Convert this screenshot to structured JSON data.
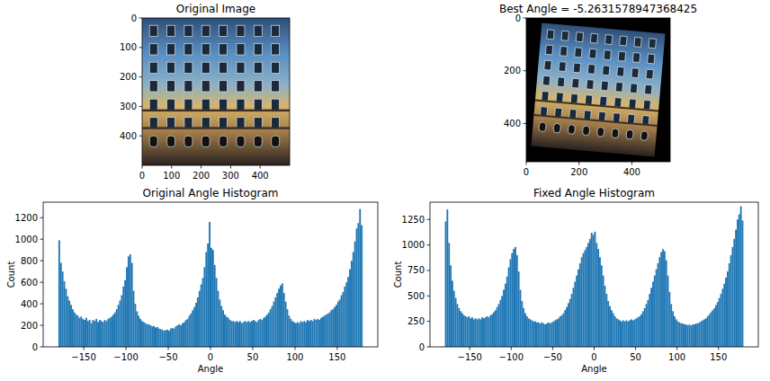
{
  "chart_data": [
    {
      "type": "image",
      "title": "Original Image",
      "xlim": [
        0,
        500
      ],
      "ylim": [
        500,
        0
      ],
      "xticks": [
        0,
        100,
        200,
        300,
        400
      ],
      "yticks": [
        0,
        100,
        200,
        300,
        400
      ]
    },
    {
      "type": "image",
      "title": "Best Angle = -5.2631578947368425",
      "xlim": [
        0,
        545
      ],
      "ylim": [
        545,
        0
      ],
      "xticks": [
        0,
        200,
        400
      ],
      "yticks": [
        0,
        200,
        400
      ]
    },
    {
      "type": "histogram",
      "title": "Original Angle Histogram",
      "x_label": "Angle",
      "y_label": "Count",
      "color": "#1f77b4",
      "bins": [
        -180,
        -178,
        -176,
        -174,
        -172,
        -170,
        -168,
        -166,
        -164,
        -162,
        -160,
        -158,
        -156,
        -154,
        -152,
        -150,
        -148,
        -146,
        -144,
        -142,
        -140,
        -138,
        -136,
        -134,
        -132,
        -130,
        -128,
        -126,
        -124,
        -122,
        -120,
        -118,
        -116,
        -114,
        -112,
        -110,
        -108,
        -106,
        -104,
        -102,
        -100,
        -98,
        -96,
        -94,
        -92,
        -90,
        -88,
        -86,
        -84,
        -82,
        -80,
        -78,
        -76,
        -74,
        -72,
        -70,
        -68,
        -66,
        -64,
        -62,
        -60,
        -58,
        -56,
        -54,
        -52,
        -50,
        -48,
        -46,
        -44,
        -42,
        -40,
        -38,
        -36,
        -34,
        -32,
        -30,
        -28,
        -26,
        -24,
        -22,
        -20,
        -18,
        -16,
        -14,
        -12,
        -10,
        -8,
        -6,
        -4,
        -2,
        0,
        2,
        4,
        6,
        8,
        10,
        12,
        14,
        16,
        18,
        20,
        22,
        24,
        26,
        28,
        30,
        32,
        34,
        36,
        38,
        40,
        42,
        44,
        46,
        48,
        50,
        52,
        54,
        56,
        58,
        60,
        62,
        64,
        66,
        68,
        70,
        72,
        74,
        76,
        78,
        80,
        82,
        84,
        86,
        88,
        90,
        92,
        94,
        96,
        98,
        100,
        102,
        104,
        106,
        108,
        110,
        112,
        114,
        116,
        118,
        120,
        122,
        124,
        126,
        128,
        130,
        132,
        134,
        136,
        138,
        140,
        142,
        144,
        146,
        148,
        150,
        152,
        154,
        156,
        158,
        160,
        162,
        164,
        166,
        168,
        170,
        172,
        174,
        176,
        178,
        180
      ],
      "counts": [
        990,
        780,
        700,
        610,
        540,
        470,
        430,
        390,
        350,
        320,
        300,
        290,
        270,
        280,
        260,
        250,
        270,
        240,
        250,
        220,
        250,
        240,
        260,
        230,
        250,
        240,
        230,
        250,
        240,
        260,
        270,
        280,
        300,
        320,
        350,
        390,
        430,
        480,
        560,
        620,
        740,
        840,
        860,
        780,
        520,
        400,
        330,
        290,
        260,
        240,
        230,
        220,
        210,
        210,
        200,
        190,
        195,
        180,
        185,
        170,
        165,
        160,
        150,
        155,
        160,
        150,
        170,
        175,
        170,
        190,
        200,
        210,
        200,
        220,
        230,
        250,
        260,
        290,
        310,
        340,
        370,
        410,
        460,
        520,
        580,
        640,
        740,
        880,
        960,
        1160,
        920,
        900,
        760,
        640,
        520,
        440,
        380,
        340,
        300,
        280,
        270,
        250,
        240,
        240,
        230,
        240,
        230,
        240,
        220,
        230,
        240,
        230,
        240,
        230,
        240,
        250,
        240,
        230,
        250,
        260,
        250,
        270,
        280,
        300,
        320,
        350,
        380,
        420,
        460,
        500,
        540,
        570,
        590,
        500,
        420,
        350,
        290,
        260,
        240,
        230,
        220,
        230,
        220,
        240,
        230,
        240,
        230,
        250,
        240,
        250,
        240,
        260,
        250,
        260,
        250,
        270,
        280,
        290,
        300,
        310,
        320,
        340,
        350,
        370,
        390,
        420,
        440,
        480,
        510,
        560,
        600,
        650,
        720,
        800,
        880,
        980,
        1100,
        1150,
        1280,
        1130
      ],
      "xlim": [
        -198,
        198
      ],
      "ylim": [
        0,
        1344
      ],
      "xticks": [
        {
          "value": -150,
          "label": "−150"
        },
        {
          "value": -100,
          "label": "−100"
        },
        {
          "value": -50,
          "label": "−50"
        },
        0,
        50,
        100,
        150
      ],
      "yticks": [
        0,
        200,
        400,
        600,
        800,
        1000,
        1200
      ]
    },
    {
      "type": "histogram",
      "title": "Fixed Angle Histogram",
      "x_label": "Angle",
      "y_label": "Count",
      "color": "#1f77b4",
      "bins": [
        -180,
        -178,
        -176,
        -174,
        -172,
        -170,
        -168,
        -166,
        -164,
        -162,
        -160,
        -158,
        -156,
        -154,
        -152,
        -150,
        -148,
        -146,
        -144,
        -142,
        -140,
        -138,
        -136,
        -134,
        -132,
        -130,
        -128,
        -126,
        -124,
        -122,
        -120,
        -118,
        -116,
        -114,
        -112,
        -110,
        -108,
        -106,
        -104,
        -102,
        -100,
        -98,
        -96,
        -94,
        -92,
        -90,
        -88,
        -86,
        -84,
        -82,
        -80,
        -78,
        -76,
        -74,
        -72,
        -70,
        -68,
        -66,
        -64,
        -62,
        -60,
        -58,
        -56,
        -54,
        -52,
        -50,
        -48,
        -46,
        -44,
        -42,
        -40,
        -38,
        -36,
        -34,
        -32,
        -30,
        -28,
        -26,
        -24,
        -22,
        -20,
        -18,
        -16,
        -14,
        -12,
        -10,
        -8,
        -6,
        -4,
        -2,
        0,
        2,
        4,
        6,
        8,
        10,
        12,
        14,
        16,
        18,
        20,
        22,
        24,
        26,
        28,
        30,
        32,
        34,
        36,
        38,
        40,
        42,
        44,
        46,
        48,
        50,
        52,
        54,
        56,
        58,
        60,
        62,
        64,
        66,
        68,
        70,
        72,
        74,
        76,
        78,
        80,
        82,
        84,
        86,
        88,
        90,
        92,
        94,
        96,
        98,
        100,
        102,
        104,
        106,
        108,
        110,
        112,
        114,
        116,
        118,
        120,
        122,
        124,
        126,
        128,
        130,
        132,
        134,
        136,
        138,
        140,
        142,
        144,
        146,
        148,
        150,
        152,
        154,
        156,
        158,
        160,
        162,
        164,
        166,
        168,
        170,
        172,
        174,
        176,
        178,
        180
      ],
      "counts": [
        1230,
        1350,
        1020,
        800,
        650,
        550,
        480,
        420,
        380,
        350,
        330,
        310,
        300,
        290,
        300,
        280,
        290,
        270,
        280,
        270,
        280,
        270,
        290,
        280,
        290,
        300,
        290,
        310,
        320,
        340,
        360,
        390,
        420,
        460,
        500,
        560,
        620,
        690,
        780,
        860,
        920,
        960,
        980,
        900,
        740,
        560,
        450,
        380,
        330,
        300,
        280,
        270,
        260,
        250,
        250,
        240,
        240,
        230,
        240,
        230,
        220,
        230,
        240,
        230,
        240,
        250,
        260,
        270,
        280,
        300,
        310,
        330,
        360,
        390,
        430,
        470,
        520,
        580,
        640,
        700,
        760,
        820,
        880,
        920,
        950,
        980,
        1020,
        1060,
        1120,
        1100,
        1130,
        1020,
        960,
        880,
        800,
        700,
        600,
        520,
        450,
        400,
        360,
        330,
        300,
        280,
        270,
        260,
        250,
        260,
        250,
        260,
        250,
        260,
        270,
        260,
        270,
        280,
        290,
        300,
        320,
        350,
        380,
        420,
        460,
        520,
        580,
        640,
        700,
        760,
        820,
        880,
        930,
        960,
        940,
        850,
        700,
        540,
        420,
        350,
        300,
        270,
        250,
        240,
        230,
        230,
        220,
        220,
        210,
        220,
        210,
        220,
        220,
        230,
        230,
        240,
        250,
        260,
        270,
        280,
        300,
        320,
        340,
        360,
        380,
        410,
        440,
        480,
        520,
        570,
        620,
        680,
        740,
        820,
        900,
        980,
        1060,
        1150,
        1250,
        1300,
        1380,
        1240
      ],
      "xlim": [
        -198,
        198
      ],
      "ylim": [
        0,
        1420
      ],
      "xticks": [
        {
          "value": -150,
          "label": "−150"
        },
        {
          "value": -100,
          "label": "−100"
        },
        {
          "value": -50,
          "label": "−50"
        },
        0,
        50,
        100,
        150
      ],
      "yticks": [
        0,
        250,
        500,
        750,
        1000,
        1250
      ]
    }
  ]
}
